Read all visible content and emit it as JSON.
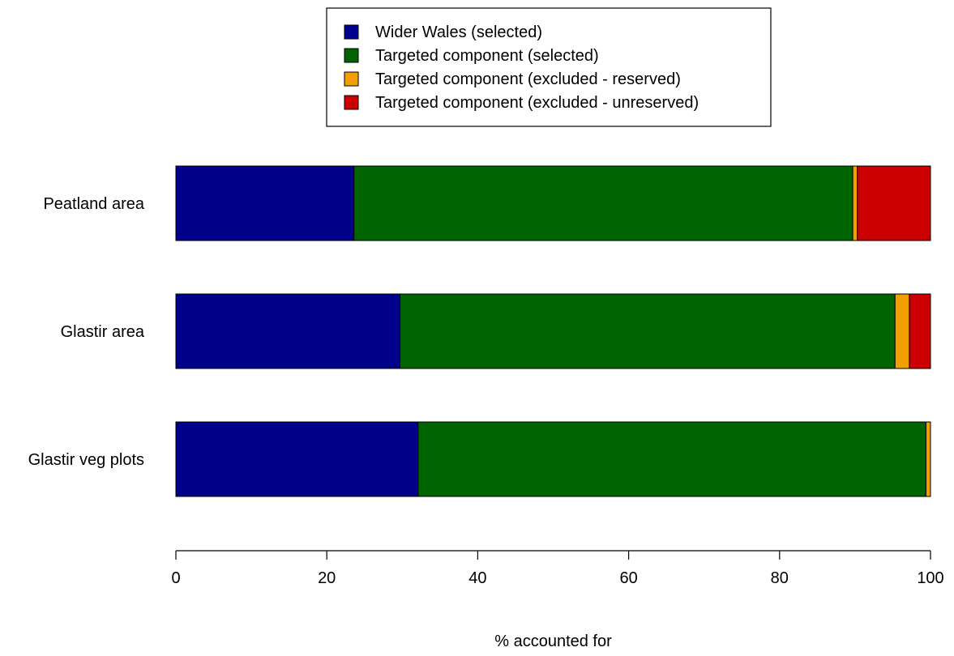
{
  "chart_data": {
    "type": "bar",
    "orientation": "horizontal",
    "stacked": true,
    "categories": [
      "Peatland area",
      "Glastir area",
      "Glastir veg plots"
    ],
    "series": [
      {
        "name": "Wider Wales (selected)",
        "color": "#00008B",
        "values": [
          23.6,
          29.7,
          32.1
        ]
      },
      {
        "name": "Targeted component (selected)",
        "color": "#006400",
        "values": [
          66.1,
          65.6,
          67.3
        ]
      },
      {
        "name": "Targeted component (excluded - reserved)",
        "color": "#F0A000",
        "values": [
          0.6,
          1.9,
          0.6
        ]
      },
      {
        "name": "Targeted component (excluded - unreserved)",
        "color": "#CC0000",
        "values": [
          9.7,
          2.8,
          0.0
        ]
      }
    ],
    "xlabel": "% accounted for",
    "ylabel": "",
    "xlim": [
      0,
      100
    ],
    "xticks": [
      0,
      20,
      40,
      60,
      80,
      100
    ],
    "grid": false,
    "legend_position": "top-center"
  }
}
